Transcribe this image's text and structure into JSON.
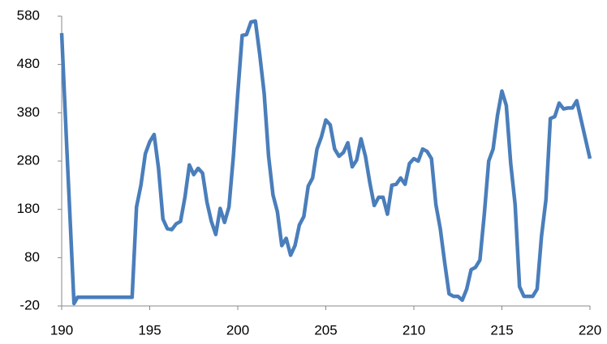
{
  "chart_data": {
    "type": "line",
    "x": [
      190,
      190.3,
      190.7,
      190.9,
      194,
      194.25,
      194.5,
      194.75,
      195,
      195.25,
      195.5,
      195.75,
      196,
      196.25,
      196.5,
      196.75,
      197,
      197.25,
      197.5,
      197.75,
      198,
      198.25,
      198.5,
      198.75,
      199,
      199.25,
      199.5,
      199.75,
      200,
      200.25,
      200.5,
      200.75,
      201,
      201.25,
      201.5,
      201.75,
      202,
      202.25,
      202.5,
      202.75,
      203,
      203.25,
      203.5,
      203.75,
      204,
      204.25,
      204.5,
      204.75,
      205,
      205.25,
      205.5,
      205.75,
      206,
      206.25,
      206.5,
      206.75,
      207,
      207.25,
      207.5,
      207.75,
      208,
      208.25,
      208.5,
      208.75,
      209,
      209.25,
      209.5,
      209.75,
      210,
      210.25,
      210.5,
      210.75,
      211,
      211.25,
      211.5,
      211.75,
      212,
      212.25,
      212.5,
      212.75,
      213,
      213.25,
      213.5,
      213.75,
      214,
      214.25,
      214.5,
      214.75,
      215,
      215.25,
      215.5,
      215.75,
      216,
      216.25,
      216.5,
      216.75,
      217,
      217.25,
      217.5,
      217.75,
      218,
      218.25,
      218.5,
      218.75,
      219,
      219.25,
      220
    ],
    "values": [
      545,
      300,
      -15,
      -2,
      -2,
      185,
      230,
      295,
      320,
      335,
      265,
      160,
      140,
      138,
      150,
      155,
      205,
      272,
      252,
      265,
      255,
      195,
      155,
      128,
      182,
      153,
      185,
      290,
      420,
      540,
      542,
      568,
      570,
      500,
      420,
      290,
      210,
      175,
      105,
      120,
      85,
      105,
      148,
      165,
      228,
      245,
      305,
      330,
      365,
      355,
      305,
      290,
      298,
      318,
      268,
      282,
      326,
      290,
      235,
      188,
      205,
      205,
      170,
      230,
      232,
      245,
      232,
      275,
      285,
      280,
      305,
      300,
      285,
      190,
      140,
      70,
      5,
      0,
      0,
      -8,
      15,
      55,
      60,
      75,
      170,
      280,
      305,
      375,
      425,
      395,
      275,
      190,
      20,
      0,
      0,
      0,
      15,
      125,
      200,
      368,
      372,
      400,
      388,
      390,
      390,
      405,
      285
    ],
    "color": "#4a7ebb",
    "xlim": [
      190,
      220
    ],
    "xticks": [
      190,
      195,
      200,
      205,
      210,
      215,
      220
    ],
    "ylim": [
      -20,
      580
    ],
    "yticks": [
      -20,
      80,
      180,
      280,
      380,
      480,
      580
    ]
  }
}
